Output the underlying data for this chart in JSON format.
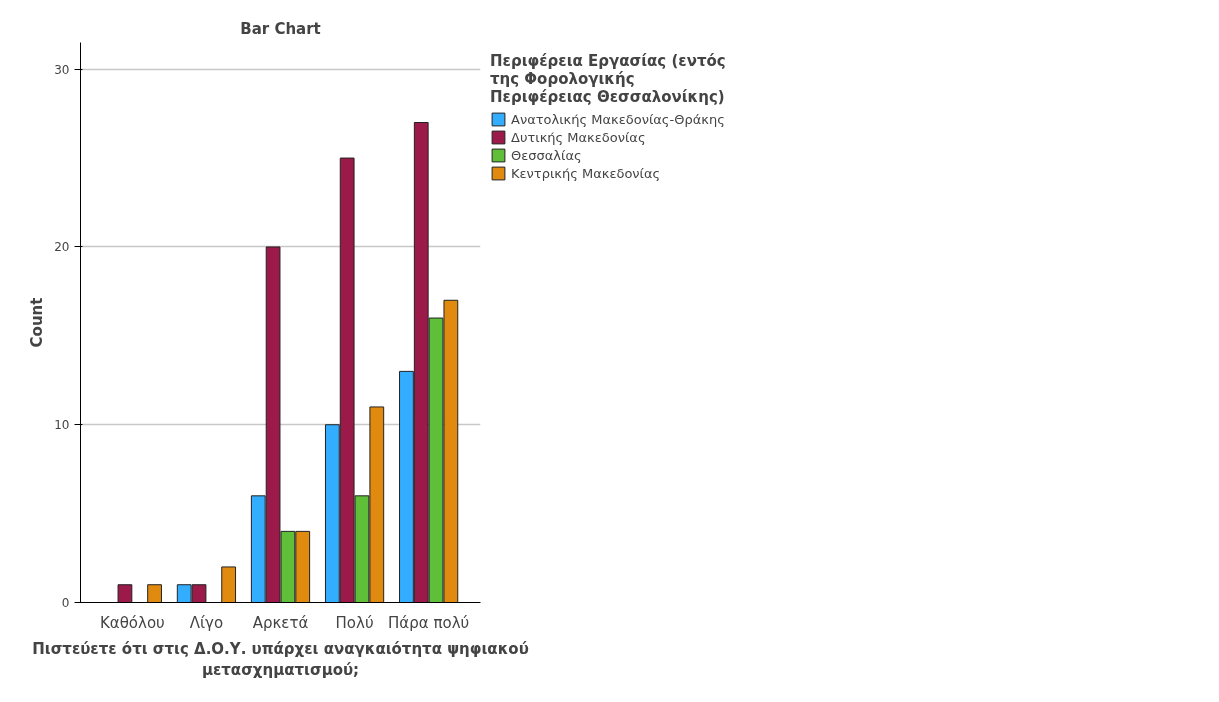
{
  "chart_data": {
    "type": "bar",
    "title": "Bar Chart",
    "xlabel": "Πιστεύετε ότι στις Δ.Ο.Υ. υπάρχει αναγκαιότητα ψηφιακού μετασχηματισμού;",
    "ylabel": "Count",
    "legend_title": "Περιφέρεια Εργασίας (εντός της Φορολογικής Περιφέρειας Θεσσαλονίκης)",
    "categories": [
      "Καθόλου",
      "Λίγο",
      "Αρκετά",
      "Πολύ",
      "Πάρα πολύ"
    ],
    "series": [
      {
        "name": "Ανατολικής Μακεδονίας-Θράκης",
        "color": "#33adff",
        "values": [
          null,
          1,
          6,
          10,
          13
        ]
      },
      {
        "name": "Δυτικής Μακεδονίας",
        "color": "#9c1a4a",
        "values": [
          1,
          1,
          20,
          25,
          27
        ]
      },
      {
        "name": "Θεσσαλίας",
        "color": "#5fbf38",
        "values": [
          null,
          null,
          4,
          6,
          16
        ]
      },
      {
        "name": "Κεντρικής Μακεδονίας",
        "color": "#e08b10",
        "values": [
          1,
          2,
          4,
          11,
          17
        ]
      }
    ],
    "ylim": [
      0,
      31.5
    ],
    "yticks": [
      0,
      10,
      20,
      30
    ],
    "grid": "y",
    "legend": "top right"
  }
}
